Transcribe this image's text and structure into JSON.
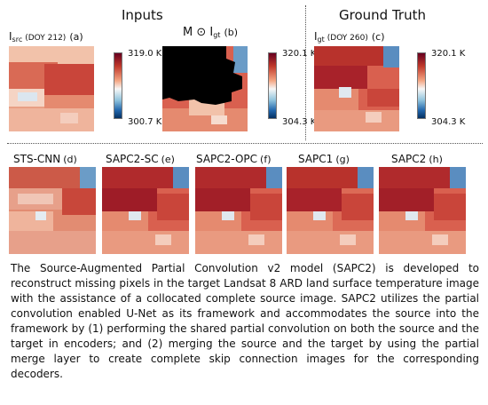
{
  "figure": {
    "headers": {
      "inputs": "Inputs",
      "ground_truth": "Ground Truth"
    },
    "top_panels": {
      "src": {
        "symbol": "I",
        "subscript": "src",
        "doy": "(DOY 212)",
        "tag": "(a)"
      },
      "mask": {
        "symbol": "M ⊙ I",
        "subscript": "gt",
        "tag": "(b)"
      },
      "gt": {
        "symbol": "I",
        "subscript": "gt",
        "doy": "(DOY 260)",
        "tag": "(c)"
      }
    },
    "colorbars": {
      "src": {
        "max": "319.0 K",
        "min": "300.7 K"
      },
      "gt_masked": {
        "max": "320.1 K",
        "min": "304.3 K"
      },
      "gt": {
        "max": "320.1 K",
        "min": "304.3 K"
      }
    },
    "bottom_panels": [
      {
        "title": "STS-CNN",
        "tag": "(d)"
      },
      {
        "title": "SAPC2-SC",
        "tag": "(e)"
      },
      {
        "title": "SAPC2-OPC",
        "tag": "(f)"
      },
      {
        "title": "SAPC1",
        "tag": "(g)"
      },
      {
        "title": "SAPC2",
        "tag": "(h)"
      }
    ]
  },
  "caption": "The Source-Augmented Partial Convolution v2 model (SAPC2) is developed to reconstruct missing pixels in the target Landsat 8 ARD land surface temperature image with the assistance of a collocated complete source image. SAPC2 utilizes the partial convolution enabled U-Net as its framework and accommodates the source into the framework by (1) performing the shared partial convolution on both the source and the target in encoders; and (2) merging the source and the target by using the partial merge layer to create complete skip connection images for the corresponding decoders."
}
